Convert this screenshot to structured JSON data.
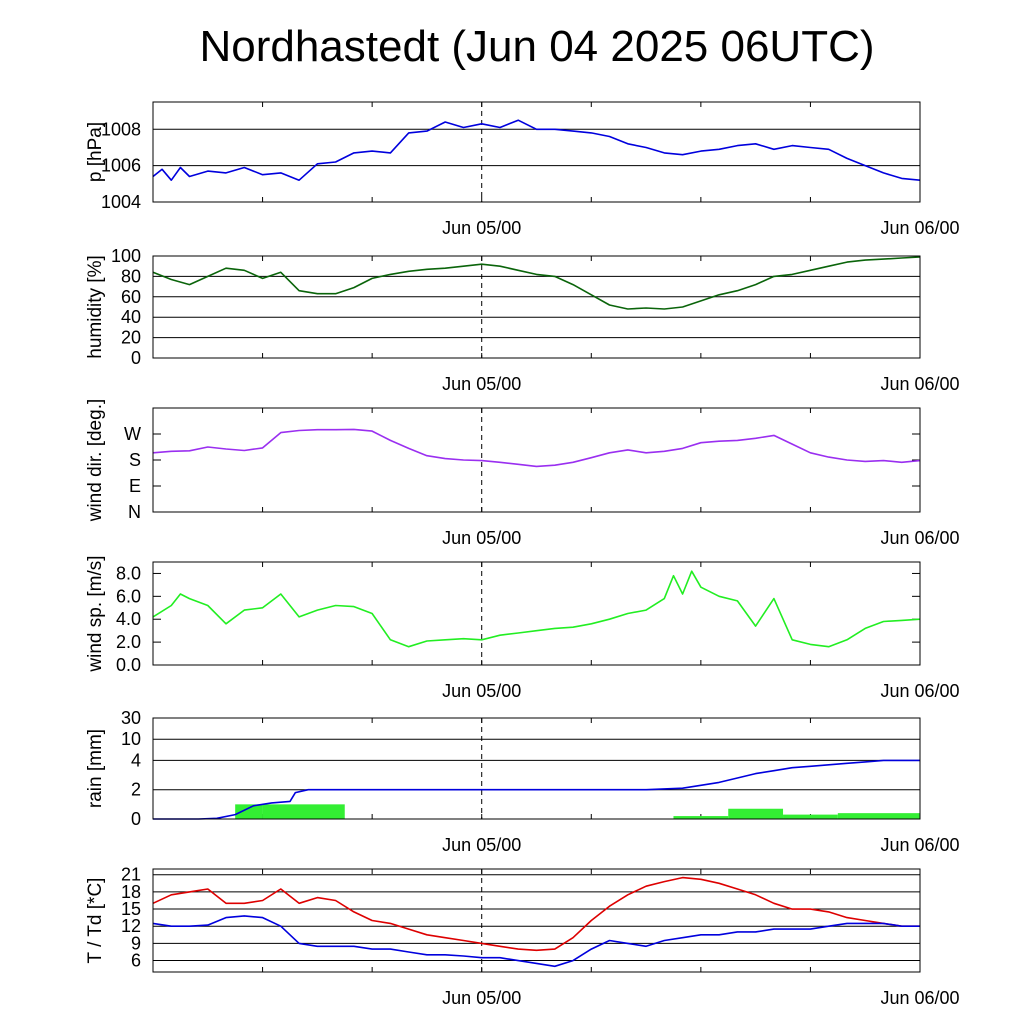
{
  "title": "Nordhastedt (Jun 04 2025 06UTC)",
  "time_axis": {
    "start": "Jun 04 2025 06UTC",
    "end": "Jun 06/00",
    "tick_labels": [
      "Jun 05/00",
      "Jun 06/00"
    ]
  },
  "chart_data": [
    {
      "type": "line",
      "ylabel": "p [hPa]",
      "ylim": [
        1004,
        1009.5
      ],
      "y_ticks": [
        1004,
        1006,
        1008
      ],
      "y_tick_labels": [
        "1004",
        "1006",
        "1008"
      ],
      "grid": true,
      "x_tick_labels": [
        "Jun 05/00",
        "Jun 06/00"
      ],
      "series": [
        {
          "color": "#0000dd",
          "x": [
            0,
            0.5,
            1,
            1.5,
            2,
            3,
            4,
            5,
            6,
            7,
            8,
            9,
            10,
            11,
            12,
            13,
            14,
            15,
            16,
            17,
            18,
            19,
            20,
            21,
            22,
            23,
            24,
            25,
            26,
            27,
            28,
            29,
            30,
            31,
            32,
            33,
            34,
            35,
            36,
            37,
            38,
            39,
            40,
            41,
            42
          ],
          "values": [
            1005.4,
            1005.8,
            1005.2,
            1005.9,
            1005.4,
            1005.7,
            1005.6,
            1005.9,
            1005.5,
            1005.6,
            1005.2,
            1006.1,
            1006.2,
            1006.7,
            1006.8,
            1006.7,
            1007.8,
            1007.9,
            1008.4,
            1008.1,
            1008.3,
            1008.1,
            1008.5,
            1008.0,
            1008.0,
            1007.9,
            1007.8,
            1007.6,
            1007.2,
            1007.0,
            1006.7,
            1006.6,
            1006.8,
            1006.9,
            1007.1,
            1007.2,
            1006.9,
            1007.1,
            1007.0,
            1006.9,
            1006.4,
            1006.0,
            1005.6,
            1005.3,
            1005.2
          ]
        }
      ]
    },
    {
      "type": "line",
      "ylabel": "humidity [%]",
      "ylim": [
        0,
        100
      ],
      "y_ticks": [
        0,
        20,
        40,
        60,
        80,
        100
      ],
      "y_tick_labels": [
        "0",
        "20",
        "40",
        "60",
        "80",
        "100"
      ],
      "grid": true,
      "x_tick_labels": [
        "Jun 05/00",
        "Jun 06/00"
      ],
      "series": [
        {
          "color": "#0a640a",
          "x": [
            0,
            1,
            2,
            3,
            4,
            5,
            6,
            7,
            8,
            9,
            10,
            11,
            12,
            13,
            14,
            15,
            16,
            17,
            18,
            19,
            20,
            21,
            22,
            23,
            24,
            25,
            26,
            27,
            28,
            29,
            30,
            31,
            32,
            33,
            34,
            35,
            36,
            37,
            38,
            39,
            40,
            41,
            42
          ],
          "values": [
            84,
            77,
            72,
            80,
            88,
            86,
            78,
            84,
            66,
            63,
            63,
            69,
            78,
            82,
            85,
            87,
            88,
            90,
            92,
            90,
            86,
            82,
            80,
            72,
            62,
            52,
            48,
            49,
            48,
            50,
            56,
            62,
            66,
            72,
            80,
            82,
            86,
            90,
            94,
            96,
            97,
            98,
            99
          ]
        }
      ]
    },
    {
      "type": "line",
      "ylabel": "wind dir. [deg.]",
      "ylim": [
        0,
        360
      ],
      "y_ticks": [
        0,
        90,
        180,
        270
      ],
      "y_tick_labels": [
        "N",
        "E",
        "S",
        "W"
      ],
      "grid": false,
      "x_tick_labels": [
        "Jun 05/00",
        "Jun 06/00"
      ],
      "series": [
        {
          "color": "#9a2ff0",
          "x": [
            0,
            1,
            2,
            3,
            4,
            5,
            6,
            7,
            8,
            9,
            10,
            11,
            12,
            13,
            14,
            15,
            16,
            17,
            18,
            19,
            20,
            21,
            22,
            23,
            24,
            25,
            26,
            27,
            28,
            29,
            30,
            31,
            32,
            33,
            34,
            35,
            36,
            37,
            38,
            39,
            40,
            41,
            42
          ],
          "values": [
            205,
            210,
            212,
            225,
            218,
            213,
            222,
            275,
            282,
            285,
            285,
            286,
            280,
            248,
            220,
            195,
            185,
            180,
            178,
            172,
            165,
            158,
            162,
            172,
            188,
            205,
            215,
            205,
            210,
            220,
            240,
            245,
            248,
            255,
            265,
            235,
            205,
            190,
            180,
            175,
            178,
            172,
            178
          ]
        }
      ]
    },
    {
      "type": "line",
      "ylabel": "wind sp. [m/s]",
      "ylim": [
        0,
        9
      ],
      "y_ticks": [
        0,
        2,
        4,
        6,
        8
      ],
      "y_tick_labels": [
        "0.0",
        "2.0",
        "4.0",
        "6.0",
        "8.0"
      ],
      "grid": false,
      "x_tick_labels": [
        "Jun 05/00",
        "Jun 06/00"
      ],
      "series": [
        {
          "color": "#22ee22",
          "x": [
            0,
            1,
            1.5,
            2,
            3,
            4,
            5,
            6,
            7,
            8,
            9,
            10,
            11,
            12,
            13,
            14,
            15,
            16,
            17,
            18,
            19,
            20,
            21,
            22,
            23,
            24,
            25,
            26,
            27,
            28,
            28.5,
            29,
            29.5,
            30,
            31,
            32,
            33,
            34,
            35,
            36,
            37,
            38,
            39,
            40,
            41,
            42
          ],
          "values": [
            4.2,
            5.2,
            6.2,
            5.8,
            5.2,
            3.6,
            4.8,
            5.0,
            6.2,
            4.2,
            4.8,
            5.2,
            5.1,
            4.5,
            2.2,
            1.6,
            2.1,
            2.2,
            2.3,
            2.2,
            2.6,
            2.8,
            3.0,
            3.2,
            3.3,
            3.6,
            4.0,
            4.5,
            4.8,
            5.8,
            7.8,
            6.2,
            8.2,
            6.8,
            6.0,
            5.6,
            3.4,
            5.8,
            2.2,
            1.8,
            1.6,
            2.2,
            3.2,
            3.8,
            3.9,
            4.0
          ]
        }
      ]
    },
    {
      "type": "bar+line",
      "ylabel": "rain [mm]",
      "y_ticks": [
        0,
        2,
        4,
        10,
        30
      ],
      "y_tick_labels": [
        "0",
        "2",
        "4",
        "10",
        "30"
      ],
      "grid": true,
      "x_tick_labels": [
        "Jun 05/00",
        "Jun 06/00"
      ],
      "bars": {
        "color": "#33ee33",
        "x_start": [
          4.5,
          6.0,
          28.5,
          31.5,
          34.5,
          37.5
        ],
        "x_end": [
          6.0,
          10.5,
          31.5,
          34.5,
          37.5,
          42.0
        ],
        "values": [
          1.0,
          1.0,
          0.2,
          0.7,
          0.3,
          0.4
        ]
      },
      "series": [
        {
          "color": "#0000dd",
          "x": [
            0,
            2.5,
            3.5,
            4.5,
            5.5,
            6.5,
            7.5,
            7.8,
            8.5,
            27,
            29,
            30,
            31,
            32,
            33,
            34,
            35,
            36,
            37,
            38,
            39,
            40,
            41,
            42
          ],
          "values": [
            0.0,
            0.0,
            0.05,
            0.3,
            0.9,
            1.1,
            1.2,
            1.8,
            2.0,
            2.0,
            2.1,
            2.3,
            2.5,
            2.8,
            3.1,
            3.3,
            3.5,
            3.6,
            3.7,
            3.8,
            3.9,
            4.0,
            4.0,
            4.0
          ]
        }
      ]
    },
    {
      "type": "line",
      "ylabel": "T / Td [*C]",
      "ylim": [
        4,
        22
      ],
      "y_ticks": [
        6,
        9,
        12,
        15,
        18,
        21
      ],
      "y_tick_labels": [
        "6",
        "9",
        "12",
        "15",
        "18",
        "21"
      ],
      "grid": true,
      "x_tick_labels": [
        "Jun 05/00",
        "Jun 06/00"
      ],
      "series": [
        {
          "color": "#dd0000",
          "x": [
            0,
            1,
            2,
            3,
            4,
            5,
            6,
            7,
            8,
            9,
            10,
            11,
            12,
            13,
            14,
            15,
            16,
            17,
            18,
            19,
            20,
            21,
            22,
            23,
            24,
            25,
            26,
            27,
            28,
            29,
            30,
            31,
            32,
            33,
            34,
            35,
            36,
            37,
            38,
            39,
            40,
            41,
            42
          ],
          "values": [
            16,
            17.5,
            18,
            18.5,
            16,
            16,
            16.5,
            18.5,
            16,
            17,
            16.5,
            14.5,
            13,
            12.5,
            11.5,
            10.5,
            10,
            9.5,
            9,
            8.5,
            8,
            7.8,
            8,
            10,
            13,
            15.5,
            17.5,
            19,
            19.8,
            20.5,
            20.2,
            19.5,
            18.5,
            17.5,
            16,
            15,
            15,
            14.5,
            13.5,
            13,
            12.5,
            12,
            12
          ]
        },
        {
          "color": "#0000dd",
          "x": [
            0,
            1,
            2,
            3,
            4,
            5,
            6,
            7,
            8,
            9,
            10,
            11,
            12,
            13,
            14,
            15,
            16,
            17,
            18,
            19,
            20,
            21,
            22,
            23,
            24,
            25,
            26,
            27,
            28,
            29,
            30,
            31,
            32,
            33,
            34,
            35,
            36,
            37,
            38,
            39,
            40,
            41,
            42
          ],
          "values": [
            12.5,
            12,
            12,
            12.2,
            13.5,
            13.8,
            13.5,
            12,
            9,
            8.5,
            8.5,
            8.5,
            8,
            8,
            7.5,
            7,
            7,
            6.8,
            6.5,
            6.5,
            6,
            5.5,
            5,
            6,
            8,
            9.5,
            9,
            8.5,
            9.5,
            10,
            10.5,
            10.5,
            11,
            11,
            11.5,
            11.5,
            11.5,
            12,
            12.5,
            12.5,
            12.5,
            12,
            12
          ]
        }
      ]
    }
  ]
}
